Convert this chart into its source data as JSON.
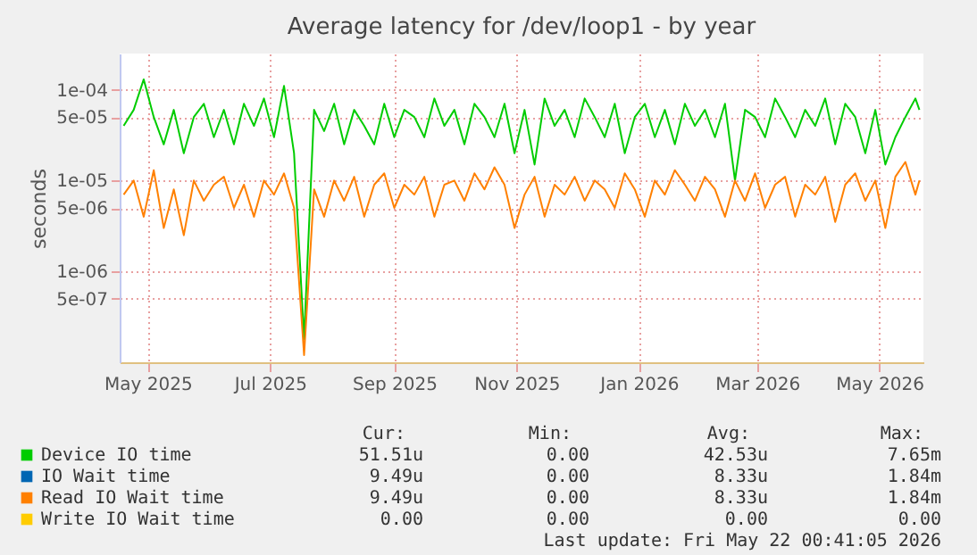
{
  "chart_data": {
    "type": "line",
    "title": "Average latency for /dev/loop1 - by year",
    "ylabel": "seconds",
    "log": true,
    "grid": true,
    "legend": "bottom",
    "xlim": [
      "2025-04-17",
      "2026-05-23"
    ],
    "xticks": [
      {
        "value": "2025-05-01",
        "label": "May 2025"
      },
      {
        "value": "2025-07-01",
        "label": "Jul 2025"
      },
      {
        "value": "2025-09-01",
        "label": "Sep 2025"
      },
      {
        "value": "2025-11-01",
        "label": "Nov 2025"
      },
      {
        "value": "2026-01-01",
        "label": "Jan 2026"
      },
      {
        "value": "2026-03-01",
        "label": "Mar 2026"
      },
      {
        "value": "2026-05-01",
        "label": "May 2026"
      }
    ],
    "ylim": [
      1e-07,
      0.00025
    ],
    "yticks": [
      {
        "value": 5e-07,
        "label": "5e-07"
      },
      {
        "value": 1e-06,
        "label": "1e-06"
      },
      {
        "value": 5e-06,
        "label": "5e-06"
      },
      {
        "value": 1e-05,
        "label": "1e-05"
      },
      {
        "value": 5e-05,
        "label": "5e-05"
      },
      {
        "value": 0.0001,
        "label": "1e-04"
      }
    ],
    "x": [
      "2025-04-19",
      "2025-04-24",
      "2025-04-29",
      "2025-05-04",
      "2025-05-09",
      "2025-05-14",
      "2025-05-19",
      "2025-05-24",
      "2025-05-29",
      "2025-06-03",
      "2025-06-08",
      "2025-06-13",
      "2025-06-18",
      "2025-06-23",
      "2025-06-28",
      "2025-07-03",
      "2025-07-08",
      "2025-07-13",
      "2025-07-18",
      "2025-07-23",
      "2025-07-28",
      "2025-08-02",
      "2025-08-07",
      "2025-08-12",
      "2025-08-17",
      "2025-08-22",
      "2025-08-27",
      "2025-09-01",
      "2025-09-06",
      "2025-09-11",
      "2025-09-16",
      "2025-09-21",
      "2025-09-26",
      "2025-10-01",
      "2025-10-06",
      "2025-10-11",
      "2025-10-16",
      "2025-10-21",
      "2025-10-26",
      "2025-10-31",
      "2025-11-05",
      "2025-11-10",
      "2025-11-15",
      "2025-11-20",
      "2025-11-25",
      "2025-11-30",
      "2025-12-05",
      "2025-12-10",
      "2025-12-15",
      "2025-12-20",
      "2025-12-25",
      "2025-12-30",
      "2026-01-04",
      "2026-01-09",
      "2026-01-14",
      "2026-01-19",
      "2026-01-24",
      "2026-01-29",
      "2026-02-03",
      "2026-02-08",
      "2026-02-13",
      "2026-02-18",
      "2026-02-23",
      "2026-02-28",
      "2026-03-05",
      "2026-03-10",
      "2026-03-15",
      "2026-03-20",
      "2026-03-25",
      "2026-03-30",
      "2026-04-04",
      "2026-04-09",
      "2026-04-14",
      "2026-04-19",
      "2026-04-24",
      "2026-04-29",
      "2026-05-04",
      "2026-05-09",
      "2026-05-14",
      "2026-05-19",
      "2026-05-21"
    ],
    "series": [
      {
        "name": "Device IO time",
        "color": "#00cc00",
        "values": [
          4e-05,
          6e-05,
          0.00013,
          5e-05,
          2.5e-05,
          6e-05,
          2e-05,
          5e-05,
          7e-05,
          3e-05,
          6e-05,
          2.5e-05,
          7e-05,
          4e-05,
          8e-05,
          3e-05,
          0.00011,
          2e-05,
          1.8e-07,
          6e-05,
          3.5e-05,
          7e-05,
          2.5e-05,
          6e-05,
          4e-05,
          2.5e-05,
          7e-05,
          3e-05,
          6e-05,
          5e-05,
          3e-05,
          8e-05,
          4e-05,
          6e-05,
          2.5e-05,
          7e-05,
          5e-05,
          3e-05,
          7e-05,
          2e-05,
          6e-05,
          1.5e-05,
          8e-05,
          4e-05,
          6e-05,
          3e-05,
          8e-05,
          5e-05,
          3e-05,
          7e-05,
          2e-05,
          5e-05,
          7e-05,
          3e-05,
          6e-05,
          2.5e-05,
          7e-05,
          4e-05,
          6e-05,
          3e-05,
          7e-05,
          1e-05,
          6e-05,
          5e-05,
          3e-05,
          8e-05,
          5e-05,
          3e-05,
          6e-05,
          4e-05,
          8e-05,
          2.5e-05,
          7e-05,
          5e-05,
          2e-05,
          6e-05,
          1.5e-05,
          3e-05,
          5e-05,
          8e-05,
          6e-05
        ]
      },
      {
        "name": "IO Wait time",
        "color": "#0066b3",
        "values": [
          null,
          null,
          null,
          null,
          null,
          null,
          null,
          null,
          null,
          null,
          null,
          null,
          null,
          null,
          null,
          null,
          null,
          null,
          null,
          null,
          null,
          null,
          null,
          null,
          null,
          null,
          null,
          null,
          null,
          null,
          null,
          null,
          null,
          null,
          null,
          null,
          null,
          null,
          null,
          null,
          null,
          null,
          null,
          null,
          null,
          null,
          null,
          null,
          null,
          null,
          null,
          null,
          null,
          null,
          null,
          null,
          null,
          null,
          null,
          null,
          null,
          null,
          null,
          null,
          null,
          null,
          null,
          null,
          null,
          null,
          null,
          null,
          null,
          null,
          null,
          null,
          null,
          null,
          null,
          null,
          null
        ]
      },
      {
        "name": "Read IO Wait time",
        "color": "#ff8000",
        "values": [
          7e-06,
          1e-05,
          4e-06,
          1.3e-05,
          3e-06,
          8e-06,
          2.5e-06,
          1e-05,
          6e-06,
          9e-06,
          1.1e-05,
          5e-06,
          9e-06,
          4e-06,
          1e-05,
          7e-06,
          1.2e-05,
          5e-06,
          1.2e-07,
          8e-06,
          4e-06,
          1e-05,
          6e-06,
          1.1e-05,
          4e-06,
          9e-06,
          1.2e-05,
          5e-06,
          9e-06,
          7e-06,
          1.1e-05,
          4e-06,
          9e-06,
          1e-05,
          6e-06,
          1.2e-05,
          8e-06,
          1.4e-05,
          9e-06,
          3e-06,
          7e-06,
          1.1e-05,
          4e-06,
          9e-06,
          7e-06,
          1.1e-05,
          6e-06,
          1e-05,
          8e-06,
          5e-06,
          1.2e-05,
          8e-06,
          4e-06,
          1e-05,
          7e-06,
          1.3e-05,
          9e-06,
          6e-06,
          1.1e-05,
          8e-06,
          4e-06,
          1e-05,
          6e-06,
          1.2e-05,
          5e-06,
          9e-06,
          1.1e-05,
          4e-06,
          9e-06,
          7e-06,
          1.1e-05,
          3.5e-06,
          9e-06,
          1.2e-05,
          6e-06,
          1e-05,
          3e-06,
          1.1e-05,
          1.6e-05,
          7e-06,
          1e-05
        ]
      },
      {
        "name": "Write IO Wait time",
        "color": "#ffcc00",
        "values": [
          null,
          null,
          null,
          null,
          null,
          null,
          null,
          null,
          null,
          null,
          null,
          null,
          null,
          null,
          null,
          null,
          null,
          null,
          null,
          null,
          null,
          null,
          null,
          null,
          null,
          null,
          null,
          null,
          null,
          null,
          null,
          null,
          null,
          null,
          null,
          null,
          null,
          null,
          null,
          null,
          null,
          null,
          null,
          null,
          null,
          null,
          null,
          null,
          null,
          null,
          null,
          null,
          null,
          null,
          null,
          null,
          null,
          null,
          null,
          null,
          null,
          null,
          null,
          null,
          null,
          null,
          null,
          null,
          null,
          null,
          null,
          null,
          null,
          null,
          null,
          null,
          null,
          null,
          null,
          null,
          null
        ]
      }
    ],
    "annotations": [
      "Cur:",
      "Min:",
      "Avg:",
      "Max:",
      "51.51u",
      "0.00",
      "42.53u",
      "7.65m",
      "9.49u",
      "0.00",
      "8.33u",
      "1.84m",
      "9.49u",
      "0.00",
      "8.33u",
      "1.84m",
      "0.00",
      "0.00",
      "0.00",
      "0.00",
      "Last update: Fri May 22 00:41:05 2026"
    ]
  }
}
